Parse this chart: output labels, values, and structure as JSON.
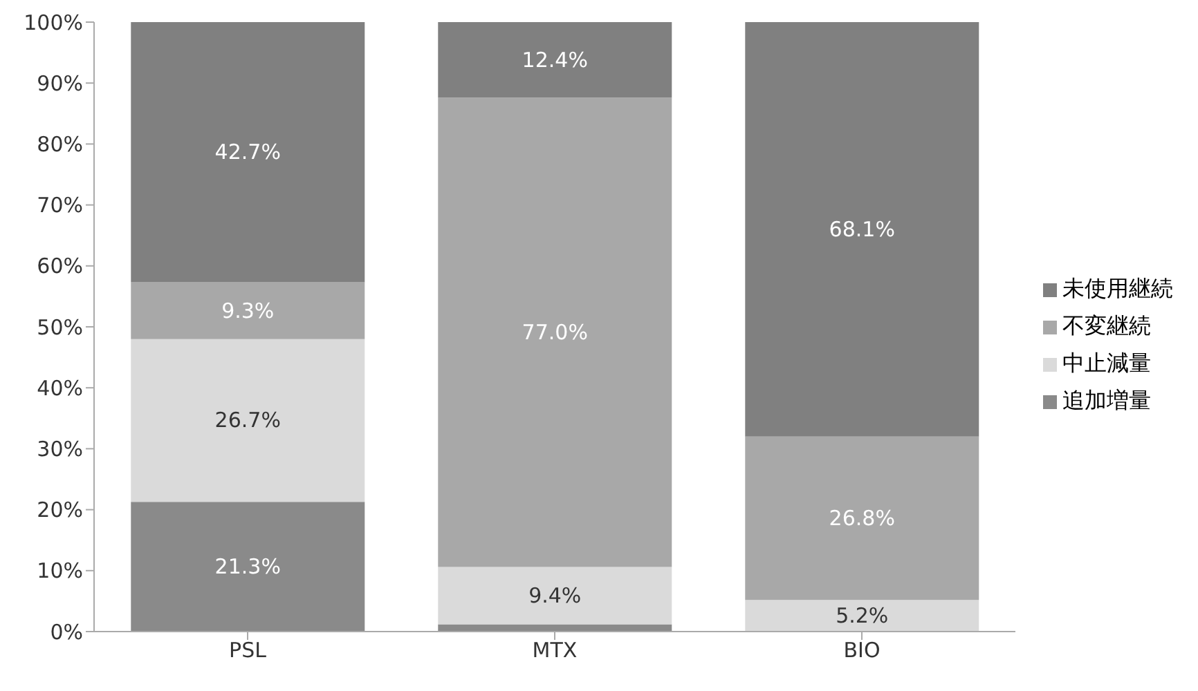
{
  "chart_data": {
    "type": "bar",
    "stacked": true,
    "categories": [
      "PSL",
      "MTX",
      "BIO"
    ],
    "series": [
      {
        "name": "追加増量",
        "color": "#8a8a8a",
        "values": [
          21.3,
          1.2,
          0
        ],
        "value_labels": [
          "21.3%",
          null,
          null
        ]
      },
      {
        "name": "中止減量",
        "color": "#dadada",
        "values": [
          26.7,
          9.4,
          5.2
        ],
        "value_labels": [
          "26.7%",
          "9.4%",
          "5.2%"
        ]
      },
      {
        "name": "不変継続",
        "color": "#a8a8a8",
        "values": [
          9.3,
          77.0,
          26.8
        ],
        "value_labels": [
          "9.3%",
          "77.0%",
          "26.8%"
        ]
      },
      {
        "name": "未使用継続",
        "color": "#808080",
        "values": [
          42.7,
          12.4,
          68.1
        ],
        "value_labels": [
          "42.7%",
          "12.4%",
          "68.1%"
        ]
      }
    ],
    "ylim": [
      0,
      100
    ],
    "yticks": [
      {
        "value": 0,
        "label": "0%"
      },
      {
        "value": 10,
        "label": "10%"
      },
      {
        "value": 20,
        "label": "20%"
      },
      {
        "value": 30,
        "label": "30%"
      },
      {
        "value": 40,
        "label": "40%"
      },
      {
        "value": 50,
        "label": "50%"
      },
      {
        "value": 60,
        "label": "60%"
      },
      {
        "value": 70,
        "label": "70%"
      },
      {
        "value": 80,
        "label": "80%"
      },
      {
        "value": 90,
        "label": "90%"
      },
      {
        "value": 100,
        "label": "100%"
      }
    ],
    "legend": "right"
  }
}
